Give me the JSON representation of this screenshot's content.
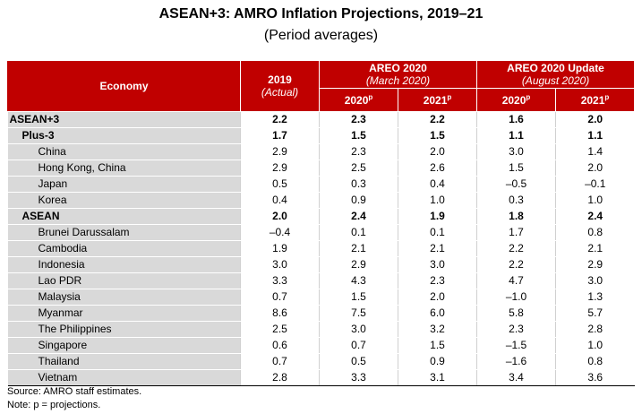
{
  "title": "ASEAN+3: AMRO Inflation Projections, 2019–21",
  "subtitle": "(Period averages)",
  "header": {
    "economy": "Economy",
    "y2019": "2019",
    "y2019_note": "(Actual)",
    "areo": "AREO 2020",
    "areo_note": "(March 2020)",
    "update": "AREO 2020 Update",
    "update_note": "(August 2020)",
    "c2020": "2020",
    "c2021": "2021",
    "proj_mark": "p"
  },
  "rows": [
    {
      "name": "ASEAN+3",
      "v": [
        "2.2",
        "2.3",
        "2.2",
        "1.6",
        "2.0"
      ]
    },
    {
      "name": "Plus-3",
      "v": [
        "1.7",
        "1.5",
        "1.5",
        "1.1",
        "1.1"
      ]
    },
    {
      "name": "China",
      "v": [
        "2.9",
        "2.3",
        "2.0",
        "3.0",
        "1.4"
      ]
    },
    {
      "name": "Hong Kong, China",
      "v": [
        "2.9",
        "2.5",
        "2.6",
        "1.5",
        "2.0"
      ]
    },
    {
      "name": "Japan",
      "v": [
        "0.5",
        "0.3",
        "0.4",
        "–0.5",
        "–0.1"
      ]
    },
    {
      "name": "Korea",
      "v": [
        "0.4",
        "0.9",
        "1.0",
        "0.3",
        "1.0"
      ]
    },
    {
      "name": "ASEAN",
      "v": [
        "2.0",
        "2.4",
        "1.9",
        "1.8",
        "2.4"
      ]
    },
    {
      "name": "Brunei Darussalam",
      "v": [
        "–0.4",
        "0.1",
        "0.1",
        "1.7",
        "0.8"
      ]
    },
    {
      "name": "Cambodia",
      "v": [
        "1.9",
        "2.1",
        "2.1",
        "2.2",
        "2.1"
      ]
    },
    {
      "name": "Indonesia",
      "v": [
        "3.0",
        "2.9",
        "3.0",
        "2.2",
        "2.9"
      ]
    },
    {
      "name": "Lao PDR",
      "v": [
        "3.3",
        "4.3",
        "2.3",
        "4.7",
        "3.0"
      ]
    },
    {
      "name": "Malaysia",
      "v": [
        "0.7",
        "1.5",
        "2.0",
        "–1.0",
        "1.3"
      ]
    },
    {
      "name": "Myanmar",
      "v": [
        "8.6",
        "7.5",
        "6.0",
        "5.8",
        "5.7"
      ]
    },
    {
      "name": "The Philippines",
      "v": [
        "2.5",
        "3.0",
        "3.2",
        "2.3",
        "2.8"
      ]
    },
    {
      "name": "Singapore",
      "v": [
        "0.6",
        "0.7",
        "1.5",
        "–1.5",
        "1.0"
      ]
    },
    {
      "name": "Thailand",
      "v": [
        "0.7",
        "0.5",
        "0.9",
        "–1.6",
        "0.8"
      ]
    },
    {
      "name": "Vietnam",
      "v": [
        "2.8",
        "3.3",
        "3.1",
        "3.4",
        "3.6"
      ]
    }
  ],
  "source": "Source: AMRO staff estimates.",
  "note": "Note: p = projections."
}
